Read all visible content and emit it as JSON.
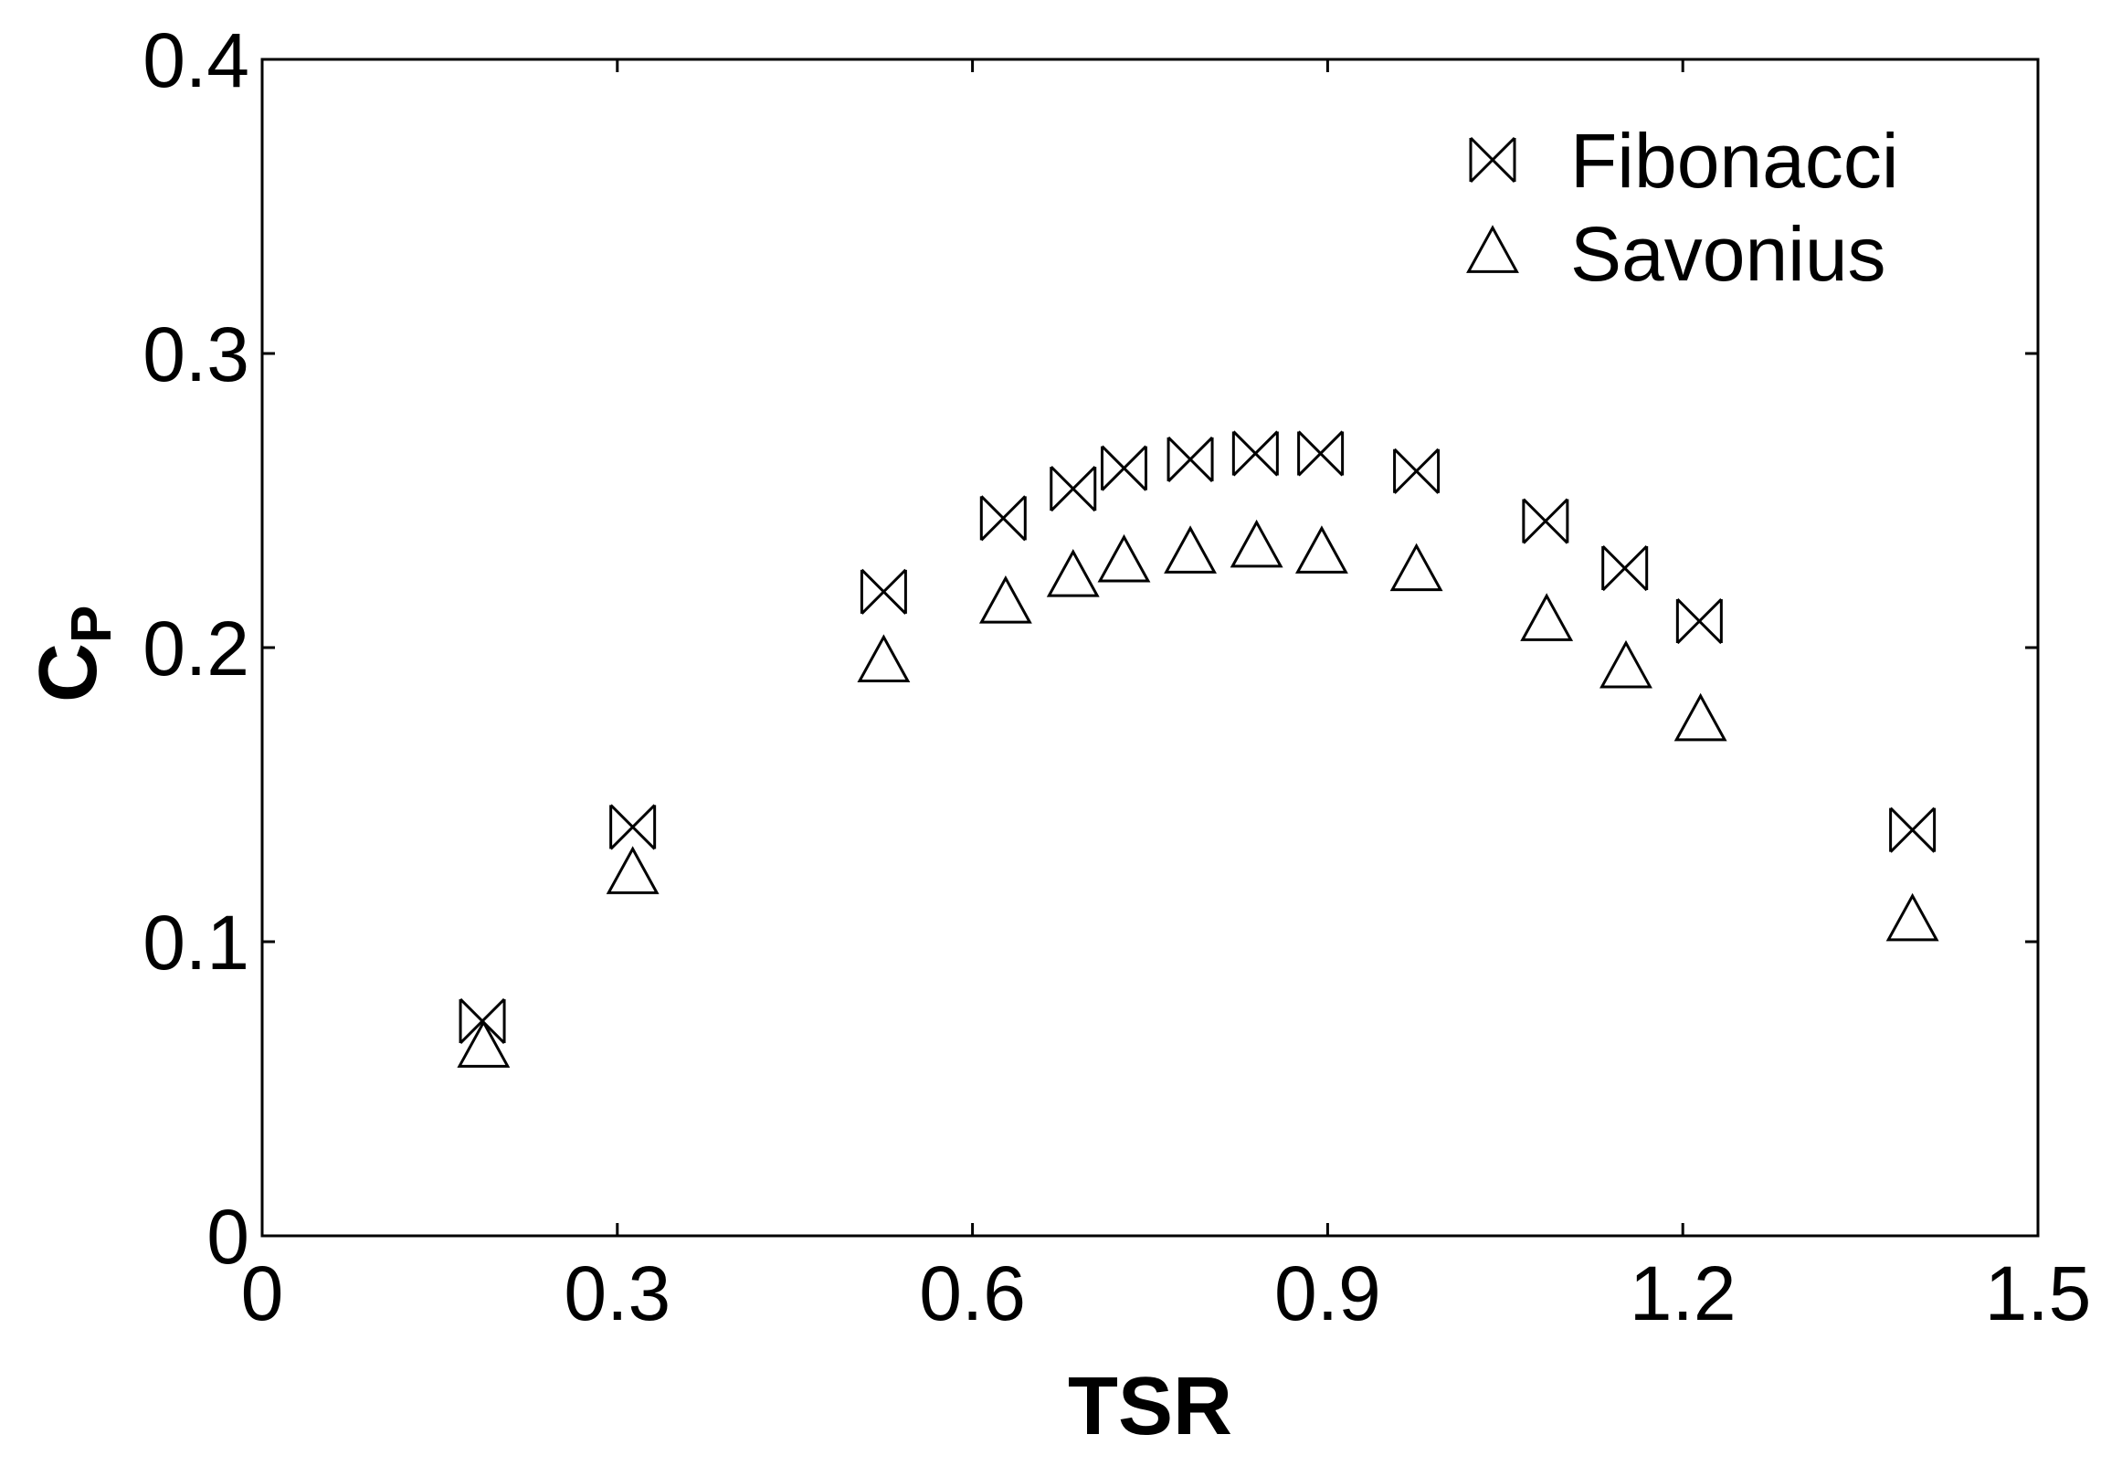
{
  "chart_data": {
    "type": "scatter",
    "xlabel": "TSR",
    "ylabel": {
      "base": "C",
      "sub": "P"
    },
    "xlim": [
      0,
      1.5
    ],
    "xticks": [
      0,
      0.3,
      0.6,
      0.9,
      1.2,
      1.5
    ],
    "ylim": [
      0,
      0.4
    ],
    "yticks": [
      0,
      0.1,
      0.2,
      0.3,
      0.4
    ],
    "legend": "upper right",
    "series": [
      {
        "name": "Fibonacci",
        "marker": "bowtie",
        "color": "#000000",
        "x": [
          0.186,
          0.313,
          0.525,
          0.626,
          0.685,
          0.728,
          0.784,
          0.839,
          0.894,
          0.975,
          1.084,
          1.151,
          1.214,
          1.394
        ],
        "values": [
          0.073,
          0.139,
          0.219,
          0.244,
          0.254,
          0.261,
          0.264,
          0.266,
          0.266,
          0.26,
          0.243,
          0.227,
          0.209,
          0.138
        ]
      },
      {
        "name": "Savonius",
        "marker": "triangle",
        "color": "#000000",
        "x": [
          0.187,
          0.313,
          0.525,
          0.628,
          0.685,
          0.728,
          0.784,
          0.84,
          0.895,
          0.975,
          1.085,
          1.152,
          1.215,
          1.394
        ],
        "values": [
          0.064,
          0.123,
          0.195,
          0.215,
          0.224,
          0.229,
          0.232,
          0.234,
          0.232,
          0.226,
          0.209,
          0.193,
          0.175,
          0.107
        ]
      }
    ]
  }
}
